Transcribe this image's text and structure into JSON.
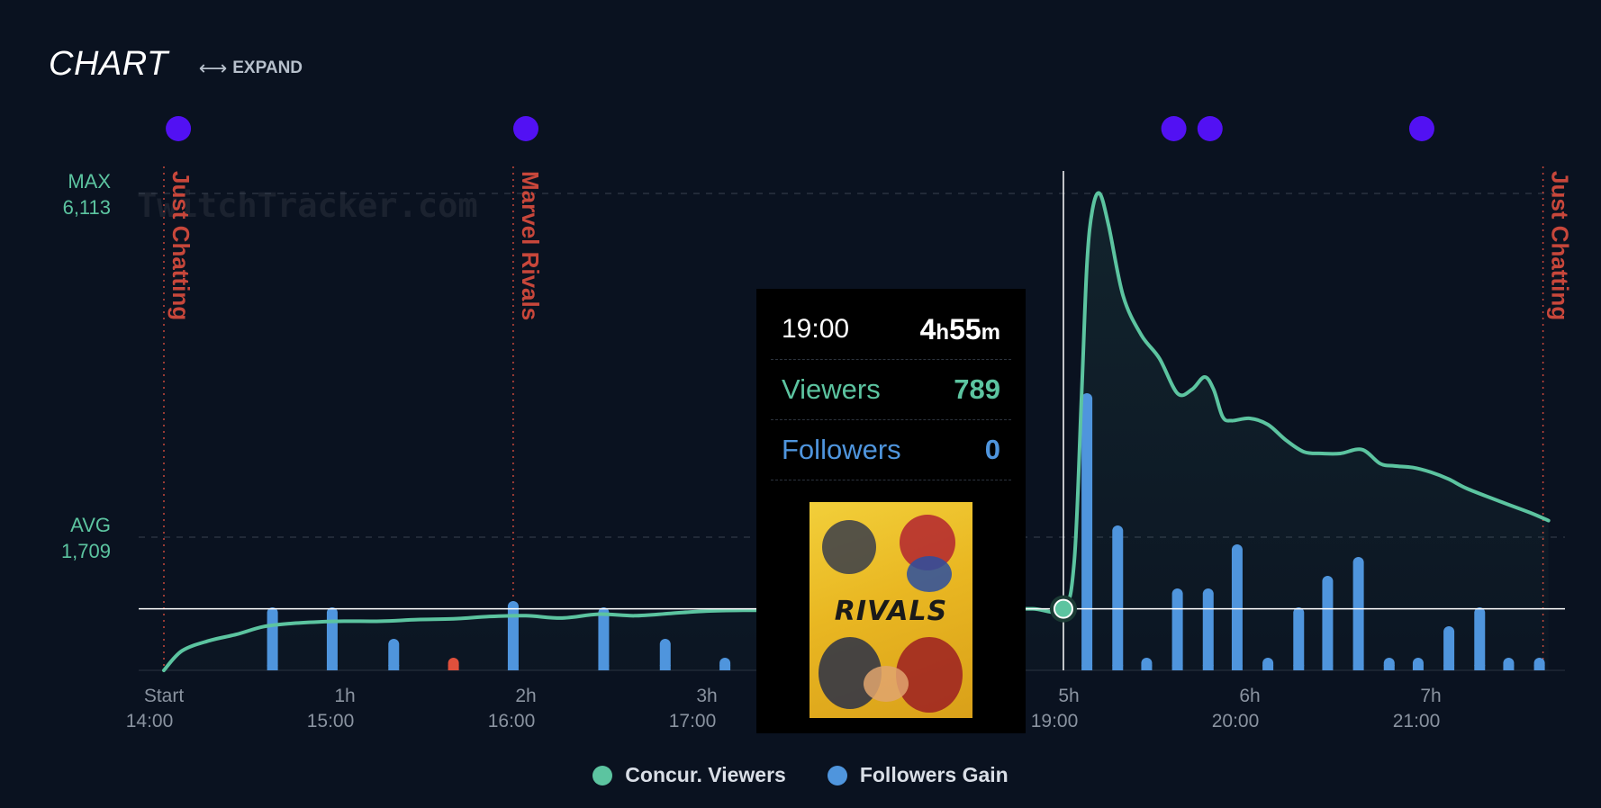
{
  "header": {
    "title": "CHART",
    "expand_label": "EXPAND"
  },
  "watermark": "TwitchTracker.com",
  "reference_lines": {
    "max_label": "MAX",
    "max_value": "6,113",
    "avg_label": "AVG",
    "avg_value": "1,709"
  },
  "colors": {
    "background": "#0a1220",
    "viewers": "#5cc4a0",
    "followers": "#4f95dd",
    "negative": "#e0503c",
    "marker": "#5211f3",
    "game_change": "#c8473b"
  },
  "chart_data": {
    "type": "line",
    "x_ticks": [
      {
        "t": 0,
        "top": "Start",
        "bottom": "14:00"
      },
      {
        "t": 1,
        "top": "1h",
        "bottom": "15:00"
      },
      {
        "t": 2,
        "top": "2h",
        "bottom": "16:00"
      },
      {
        "t": 3,
        "top": "3h",
        "bottom": "17:00"
      },
      {
        "t": 5,
        "top": "5h",
        "bottom": "19:00"
      },
      {
        "t": 6,
        "top": "6h",
        "bottom": "20:00"
      },
      {
        "t": 7,
        "top": "7h",
        "bottom": "21:00"
      }
    ],
    "viewer_scale": [
      0,
      6113
    ],
    "series": [
      {
        "name": "Concur. Viewers",
        "x": [
          0,
          0.1,
          0.25,
          0.4,
          0.55,
          0.7,
          0.85,
          1.0,
          1.2,
          1.4,
          1.6,
          1.8,
          2.0,
          2.2,
          2.4,
          2.6,
          2.8,
          3.0,
          3.2,
          3.4,
          3.6,
          3.8,
          4.0,
          4.2,
          4.4,
          4.6,
          4.8,
          4.97,
          5.03,
          5.07,
          5.1,
          5.13,
          5.17,
          5.22,
          5.3,
          5.4,
          5.5,
          5.6,
          5.68,
          5.75,
          5.8,
          5.85,
          5.9,
          6.0,
          6.1,
          6.2,
          6.3,
          6.4,
          6.5,
          6.62,
          6.72,
          6.8,
          6.9,
          7.0,
          7.1,
          7.2,
          7.4,
          7.55,
          7.65
        ],
        "values": [
          0,
          250,
          380,
          460,
          560,
          600,
          620,
          630,
          630,
          650,
          660,
          690,
          700,
          670,
          720,
          700,
          730,
          760,
          770,
          770,
          780,
          780,
          780,
          785,
          788,
          789,
          789,
          789,
          1400,
          3500,
          5200,
          5900,
          6113,
          5700,
          4800,
          4300,
          4000,
          3550,
          3600,
          3760,
          3600,
          3250,
          3200,
          3230,
          3150,
          2950,
          2800,
          2780,
          2780,
          2830,
          2650,
          2620,
          2600,
          2540,
          2450,
          2330,
          2150,
          2020,
          1920
        ]
      },
      {
        "name": "Followers Gain",
        "x": [
          0.6,
          0.93,
          1.27,
          1.6,
          1.93,
          2.43,
          2.77,
          3.1,
          5.1,
          5.27,
          5.43,
          5.6,
          5.77,
          5.93,
          6.1,
          6.27,
          6.43,
          6.6,
          6.77,
          6.93,
          7.1,
          7.27,
          7.43,
          7.6
        ],
        "values": [
          10,
          10,
          5,
          -2,
          11,
          10,
          5,
          2,
          44,
          23,
          2,
          13,
          13,
          20,
          2,
          10,
          15,
          18,
          2,
          2,
          7,
          10,
          2,
          2
        ]
      }
    ],
    "game_changes": [
      {
        "t": 0.0,
        "label": "Just Chatting"
      },
      {
        "t": 1.93,
        "label": "Marvel Rivals"
      },
      {
        "t": 7.62,
        "label": "Just Chatting"
      }
    ],
    "event_markers": [
      0.08,
      2.0,
      5.58,
      5.78,
      6.95
    ],
    "hover": {
      "t": 4.97,
      "value": 789
    }
  },
  "tooltip": {
    "time": "19:00",
    "duration_h": "4",
    "duration_h_unit": "h",
    "duration_m": "55",
    "duration_m_unit": "m",
    "viewers_label": "Viewers",
    "viewers_value": "789",
    "followers_label": "Followers",
    "followers_value": "0",
    "game_cover_title": "RIVALS"
  },
  "legend": [
    {
      "label": "Concur. Viewers",
      "color": "#5cc4a0"
    },
    {
      "label": "Followers Gain",
      "color": "#4f95dd"
    }
  ]
}
